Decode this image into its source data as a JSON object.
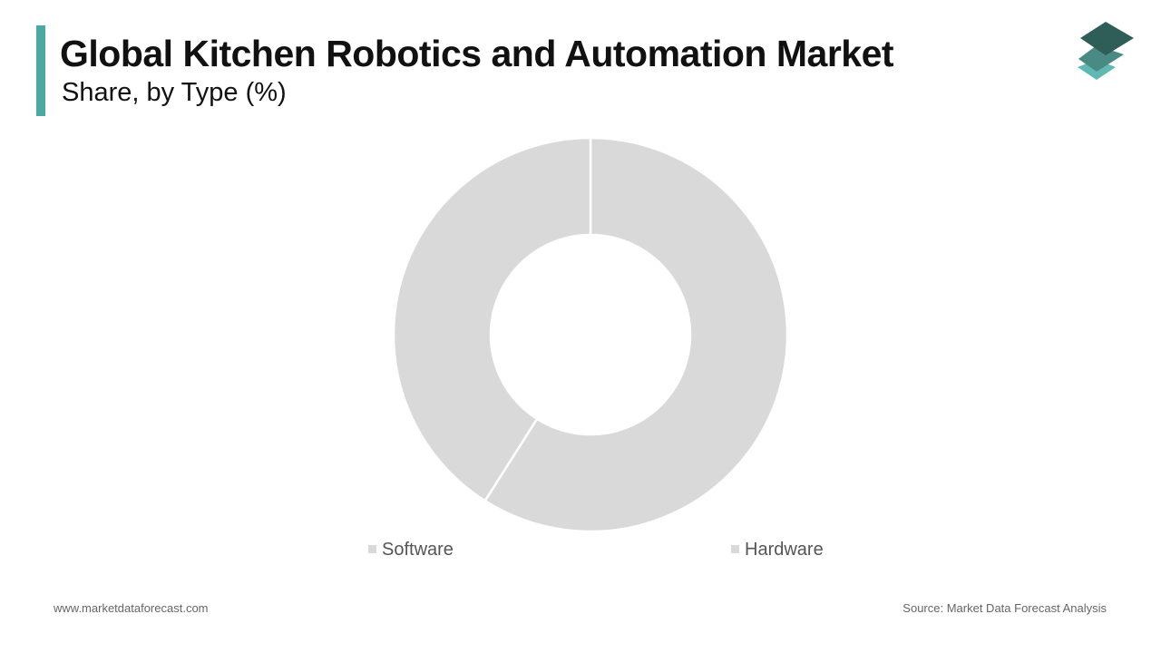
{
  "header": {
    "title": "Global Kitchen Robotics and Automation Market",
    "subtitle": "Share, by Type (%)"
  },
  "footer": {
    "website": "www.marketdataforecast.com",
    "source": "Source: Market Data Forecast Analysis"
  },
  "colors": {
    "accent_bar": "#4aa9a4",
    "logo_top": "#2f5e58",
    "logo_middle": "#4a8a84",
    "logo_bottom": "#5fb8b2",
    "slice": "#d9d9d9",
    "slice_border": "#ffffff",
    "legend_text": "#555555"
  },
  "chart_data": {
    "type": "pie",
    "donut": true,
    "categories": [
      "Hardware",
      "Software"
    ],
    "values": [
      59,
      41
    ],
    "legend": [
      "Software",
      "Hardware"
    ],
    "legend_position": "bottom"
  }
}
